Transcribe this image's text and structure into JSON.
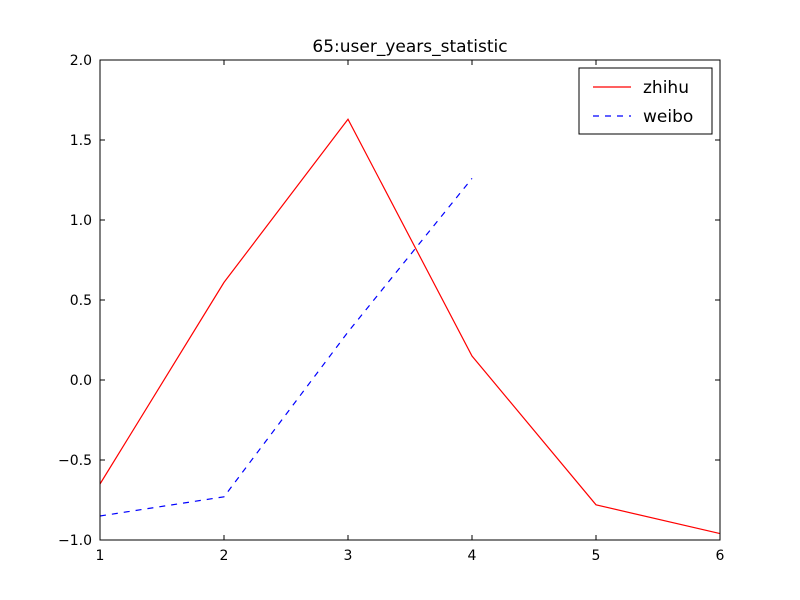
{
  "chart_data": {
    "type": "line",
    "title": "65:user_years_statistic",
    "xlabel": "",
    "ylabel": "",
    "xlim": [
      1,
      6
    ],
    "ylim": [
      -1.0,
      2.0
    ],
    "x_ticks": [
      "1",
      "2",
      "3",
      "4",
      "5",
      "6"
    ],
    "y_ticks": [
      "−1.0",
      "−0.5",
      "0.0",
      "0.5",
      "1.0",
      "1.5",
      "2.0"
    ],
    "grid": false,
    "legend_position": "top-right",
    "series": [
      {
        "name": "zhihu",
        "color": "#ff0000",
        "style": "solid",
        "x": [
          1,
          2,
          3,
          4,
          5,
          6
        ],
        "y": [
          -0.65,
          0.61,
          1.63,
          0.15,
          -0.78,
          -0.96
        ]
      },
      {
        "name": "weibo",
        "color": "#0000ff",
        "style": "dashed",
        "x": [
          1,
          2,
          3,
          4
        ],
        "y": [
          -0.85,
          -0.73,
          0.3,
          1.26
        ]
      }
    ]
  }
}
